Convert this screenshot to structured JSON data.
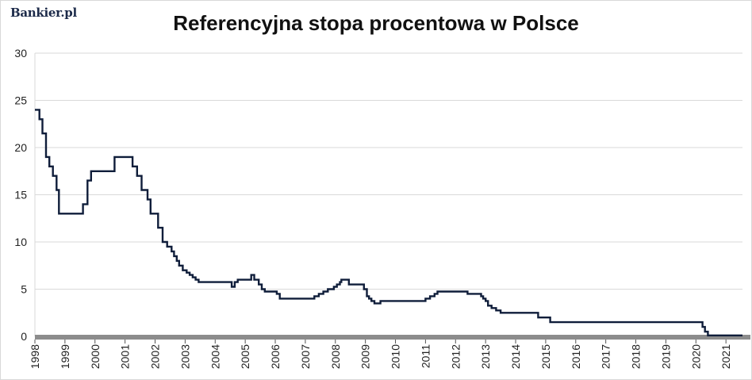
{
  "brand": "Bankier.pl",
  "colors": {
    "line": "#0f1d3a",
    "grid": "#d9d9d9",
    "axis_band": "#8c8c8c",
    "background": "#ffffff"
  },
  "chart_data": {
    "type": "line",
    "title": "Referencyjna stopa procentowa w Polsce",
    "xlabel": "",
    "ylabel": "",
    "ylim": [
      0,
      30
    ],
    "xlim": [
      1998.0,
      2021.55
    ],
    "grid": true,
    "step": true,
    "yticks": [
      "0",
      "5",
      "10",
      "15",
      "20",
      "25",
      "30"
    ],
    "xticks": [
      "1998",
      "1999",
      "2000",
      "2001",
      "2002",
      "2003",
      "2004",
      "2005",
      "2006",
      "2007",
      "2008",
      "2009",
      "2010",
      "2011",
      "2012",
      "2013",
      "2014",
      "2015",
      "2016",
      "2017",
      "2018",
      "2019",
      "2020",
      "2021"
    ],
    "series": [
      {
        "x": [
          1998.0,
          1998.15,
          1998.25,
          1998.37,
          1998.48,
          1998.6,
          1998.72,
          1998.8,
          1998.88,
          1999.02,
          1999.6,
          1999.75,
          1999.87,
          2000.15,
          2000.65,
          2000.9,
          2000.95,
          2001.05,
          2001.25,
          2001.4,
          2001.55,
          2001.65,
          2001.75,
          2001.85,
          2002.1,
          2002.25,
          2002.33,
          2002.4,
          2002.55,
          2002.63,
          2002.72,
          2002.8,
          2002.92,
          2003.05,
          2003.15,
          2003.25,
          2003.35,
          2003.45,
          2004.55,
          2004.65,
          2004.75,
          2005.2,
          2005.3,
          2005.45,
          2005.55,
          2005.65,
          2006.05,
          2006.15,
          2007.3,
          2007.45,
          2007.6,
          2007.75,
          2007.95,
          2008.05,
          2008.15,
          2008.2,
          2008.45,
          2008.95,
          2009.05,
          2009.12,
          2009.2,
          2009.3,
          2009.5,
          2011.0,
          2011.15,
          2011.3,
          2011.4,
          2012.4,
          2012.85,
          2012.92,
          2013.0,
          2013.08,
          2013.2,
          2013.35,
          2013.5,
          2014.75,
          2015.15,
          2020.22,
          2020.3,
          2020.4,
          2021.55
        ],
        "y": [
          24,
          23,
          21.5,
          19,
          18,
          17,
          15.5,
          13,
          13,
          13,
          14,
          16.5,
          17.5,
          17.5,
          19,
          19,
          19,
          19,
          18,
          17,
          15.5,
          15.5,
          14.5,
          13,
          11.5,
          10,
          10,
          9.5,
          9,
          8.5,
          8,
          7.5,
          7,
          6.75,
          6.5,
          6.25,
          6,
          5.75,
          5.25,
          5.75,
          6,
          6.5,
          6,
          5.5,
          5,
          4.75,
          4.5,
          4,
          4.25,
          4.5,
          4.75,
          5,
          5.25,
          5.5,
          5.75,
          6,
          5.5,
          5,
          4.25,
          4,
          3.75,
          3.5,
          3.75,
          4,
          4.25,
          4.5,
          4.75,
          4.5,
          4.25,
          4,
          3.75,
          3.25,
          3,
          2.75,
          2.5,
          2,
          1.5,
          1,
          0.5,
          0.1,
          0.1
        ]
      }
    ]
  }
}
